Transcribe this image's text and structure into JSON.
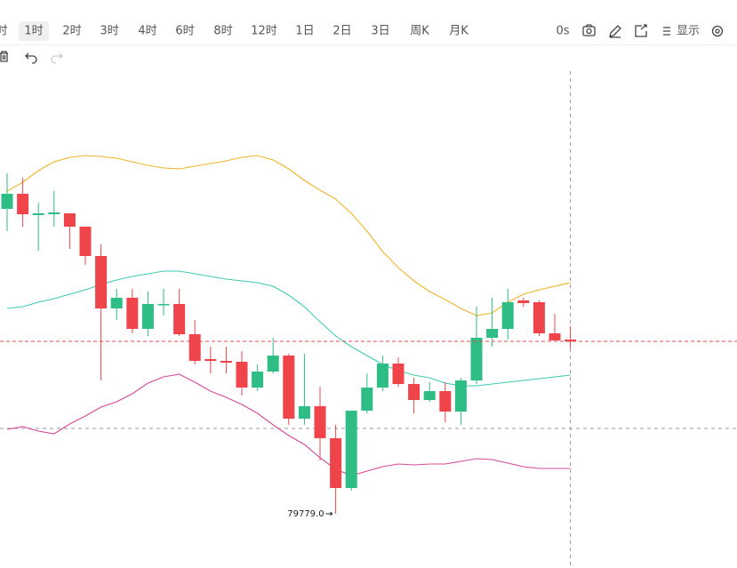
{
  "toolbar": {
    "intervals": [
      "时",
      "1时",
      "2时",
      "3时",
      "4时",
      "6时",
      "8时",
      "12时",
      "1日",
      "2日",
      "3日",
      "周K",
      "月K"
    ],
    "selected": "1时",
    "timer": "0s",
    "display": "显示"
  },
  "chart_data": {
    "type": "candlestick",
    "up_color": "#2ebd85",
    "down_color": "#ef454a",
    "open": [
      82523,
      82659,
      82467,
      82475,
      82483,
      82363,
      82099,
      81627,
      81723,
      81443,
      81659,
      81667,
      81395,
      81171,
      81155,
      81147,
      80915,
      81059,
      81203,
      80635,
      80747,
      80459,
      80011,
      80707,
      80915,
      81131,
      80947,
      80803,
      80883,
      80699,
      80979,
      81363,
      81443,
      81699,
      81683,
      81403,
      81347
    ],
    "high": [
      82843,
      82803,
      82579,
      82683,
      82483,
      82363,
      82203,
      81803,
      81803,
      81779,
      81803,
      81803,
      81523,
      81283,
      81283,
      81243,
      81123,
      81363,
      81219,
      81219,
      80923,
      80579,
      80707,
      81043,
      81203,
      81187,
      81003,
      80963,
      80963,
      81003,
      81643,
      81723,
      81803,
      81723,
      81699,
      81579,
      81467
    ],
    "low": [
      82323,
      82363,
      82147,
      82363,
      82163,
      82019,
      80979,
      81523,
      81403,
      81379,
      81563,
      81379,
      81123,
      81043,
      81043,
      80843,
      80883,
      81043,
      80579,
      80579,
      80259,
      79779,
      79987,
      80683,
      80883,
      80923,
      80683,
      80787,
      80603,
      80579,
      80947,
      81283,
      81347,
      81643,
      81379,
      81339,
      81267
    ],
    "close": [
      82659,
      82475,
      82483,
      82491,
      82363,
      82099,
      81627,
      81723,
      81443,
      81667,
      81667,
      81395,
      81155,
      81155,
      81139,
      80915,
      81059,
      81203,
      80635,
      80747,
      80459,
      80011,
      80707,
      80915,
      81131,
      80947,
      80803,
      80883,
      80699,
      80979,
      81363,
      81443,
      81683,
      81675,
      81403,
      81339,
      81331
    ],
    "bands": [
      {
        "color": "#f0b429",
        "values": [
          82683,
          82763,
          82867,
          82947,
          82987,
          83003,
          82995,
          82979,
          82947,
          82915,
          82891,
          82883,
          82907,
          82931,
          82955,
          82987,
          83003,
          82963,
          82883,
          82779,
          82691,
          82611,
          82483,
          82323,
          82139,
          81995,
          81875,
          81779,
          81707,
          81627,
          81563,
          81587,
          81683,
          81755,
          81795,
          81827,
          81859
        ]
      },
      {
        "color": "#3fcbb5",
        "values": [
          81627,
          81643,
          81683,
          81715,
          81755,
          81795,
          81843,
          81883,
          81915,
          81939,
          81963,
          81963,
          81939,
          81915,
          81891,
          81875,
          81859,
          81827,
          81747,
          81643,
          81507,
          81379,
          81283,
          81203,
          81123,
          81067,
          81027,
          81003,
          80955,
          80931,
          80931,
          80947,
          80963,
          80979,
          80995,
          81011,
          81027
        ]
      },
      {
        "color": "#d9479a",
        "values": [
          80539,
          80563,
          80523,
          80499,
          80587,
          80659,
          80739,
          80787,
          80859,
          80955,
          81011,
          81035,
          80963,
          80883,
          80827,
          80763,
          80683,
          80579,
          80483,
          80403,
          80283,
          80179,
          80123,
          80163,
          80203,
          80227,
          80219,
          80227,
          80227,
          80251,
          80275,
          80267,
          80235,
          80203,
          80187,
          80187,
          80187
        ]
      }
    ],
    "low_label": "79779.0",
    "crosshair_y": 80547,
    "ylim": [
      79291,
      83763
    ]
  }
}
